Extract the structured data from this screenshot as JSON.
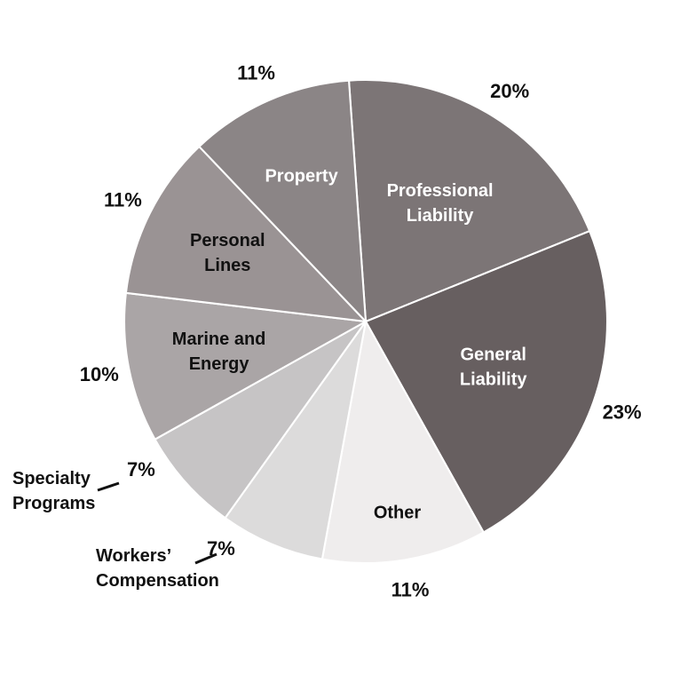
{
  "chart_data": {
    "type": "pie",
    "title": "",
    "categories": [
      "Professional Liability",
      "General Liability",
      "Other",
      "Workers' Compensation",
      "Specialty Programs",
      "Marine and Energy",
      "Personal Lines",
      "Property"
    ],
    "values": [
      20,
      23,
      11,
      7,
      7,
      10,
      11,
      11
    ],
    "value_labels": [
      "20%",
      "23%",
      "11%",
      "7%",
      "7%",
      "10%",
      "11%",
      "11%"
    ],
    "slice_label_lines": [
      [
        "Professional",
        "Liability"
      ],
      [
        "General",
        "Liability"
      ],
      [
        "Other"
      ],
      [
        "Workers’",
        "Compensation"
      ],
      [
        "Specialty",
        "Programs"
      ],
      [
        "Marine and",
        "Energy"
      ],
      [
        "Personal",
        "Lines"
      ],
      [
        "Property"
      ]
    ],
    "colors": [
      "#7c7576",
      "#675f60",
      "#efeded",
      "#dcdbdb",
      "#c6c4c5",
      "#aaa5a6",
      "#9a9394",
      "#8b8586"
    ],
    "label_colors": [
      "#ffffff",
      "#ffffff",
      "#111111",
      "#111111",
      "#111111",
      "#111111",
      "#111111",
      "#ffffff"
    ],
    "legend": "none"
  }
}
